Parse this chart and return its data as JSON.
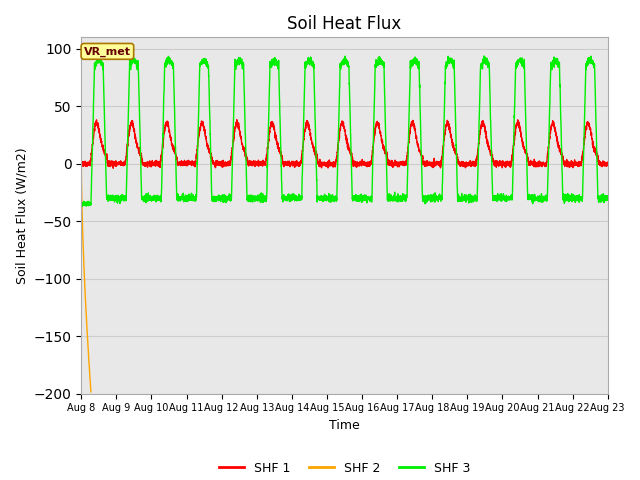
{
  "title": "Soil Heat Flux",
  "xlabel": "Time",
  "ylabel": "Soil Heat Flux (W/m2)",
  "ylim": [
    -200,
    110
  ],
  "yticks": [
    -200,
    -150,
    -100,
    -50,
    0,
    50,
    100
  ],
  "start_day": 8,
  "end_day": 23,
  "n_days": 15,
  "color_shf1": "#ff0000",
  "color_shf2": "#ffa500",
  "color_shf3": "#00ee00",
  "bg_color_upper": "#e8e8e8",
  "bg_color": "#e8e8e8",
  "annotation_text": "VR_met",
  "annotation_bg": "#ffff99",
  "annotation_border": "#aa7700",
  "legend_labels": [
    "SHF 1",
    "SHF 2",
    "SHF 3"
  ],
  "linewidth": 1.0
}
